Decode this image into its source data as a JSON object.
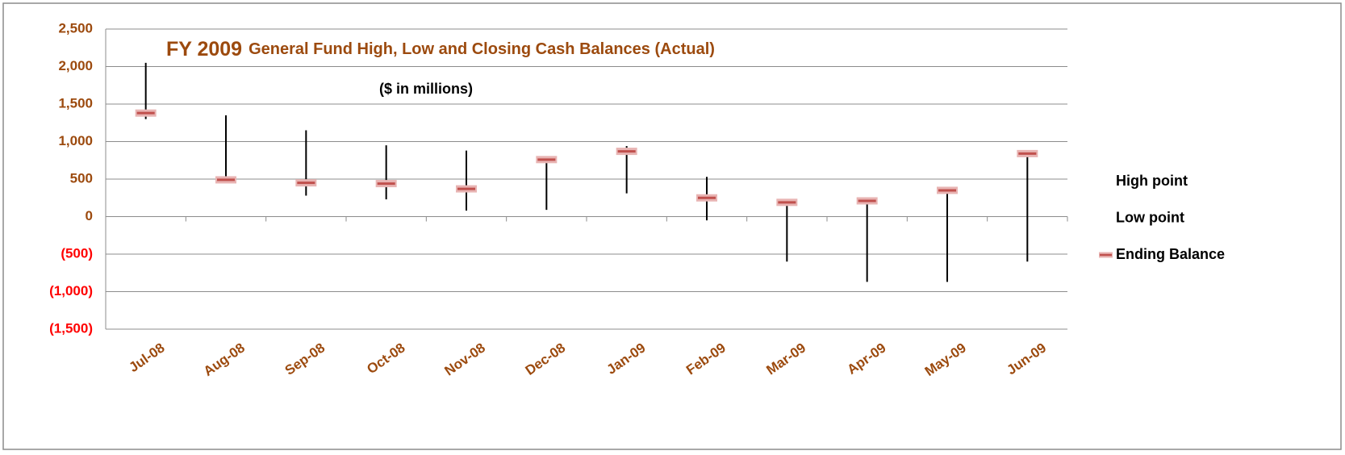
{
  "chart_data": {
    "type": "hlc",
    "title": "FY 2009",
    "title_detail": "General Fund High, Low and Closing Cash Balances (Actual)",
    "subtitle": "($ in millions)",
    "categories": [
      "Jul-08",
      "Aug-08",
      "Sep-08",
      "Oct-08",
      "Nov-08",
      "Dec-08",
      "Jan-09",
      "Feb-09",
      "Mar-09",
      "Apr-09",
      "May-09",
      "Jun-09"
    ],
    "series": [
      {
        "name": "High point",
        "color": "#000000",
        "values": [
          2050,
          1350,
          1150,
          950,
          880,
          760,
          940,
          530,
          190,
          210,
          350,
          860
        ]
      },
      {
        "name": "Low point",
        "color": "#000000",
        "values": [
          1300,
          470,
          280,
          230,
          80,
          90,
          310,
          -50,
          -600,
          -870,
          -870,
          -600
        ]
      },
      {
        "name": "Ending Balance",
        "color": "#c0504d",
        "values": [
          1380,
          490,
          450,
          440,
          370,
          760,
          870,
          250,
          190,
          210,
          350,
          840
        ]
      }
    ],
    "ylim": [
      -1500,
      2500
    ],
    "yticks": [
      {
        "value": -1500,
        "label": "(1,500)"
      },
      {
        "value": -1000,
        "label": "(1,000)"
      },
      {
        "value": -500,
        "label": "(500)"
      },
      0,
      500,
      {
        "value": 1000,
        "label": "1,000"
      },
      {
        "value": 1500,
        "label": "1,500"
      },
      {
        "value": 2000,
        "label": "2,000"
      },
      {
        "value": 2500,
        "label": "2,500"
      }
    ],
    "grid": true,
    "legend": "right",
    "label_color": "#9c4a0e",
    "negative_label_color": "#ff0000"
  }
}
